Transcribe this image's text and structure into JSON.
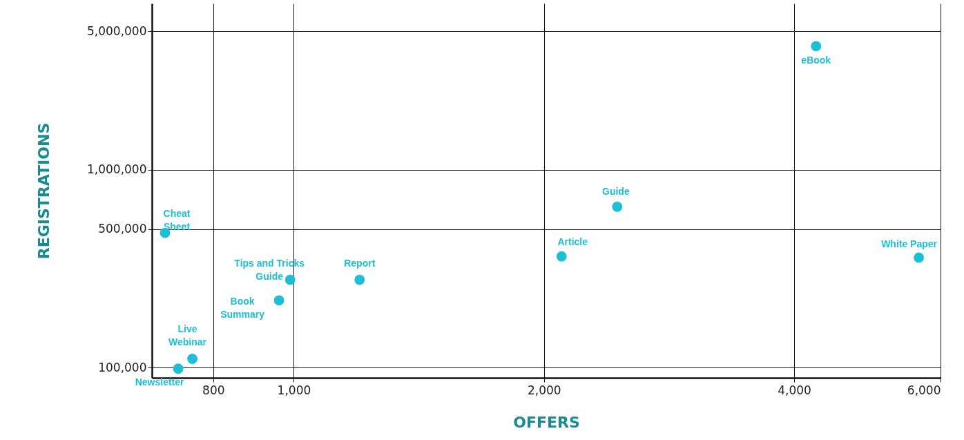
{
  "chart_data": {
    "type": "scatter",
    "xlabel": "OFFERS",
    "ylabel": "REGISTRATIONS",
    "x": [
      4250,
      2450,
      2100,
      5650,
      700,
      990,
      1200,
      960,
      755,
      726
    ],
    "values": [
      4200000,
      650000,
      365000,
      360000,
      480000,
      278000,
      278000,
      219000,
      111000,
      99000
    ],
    "color": "#1cbfd3",
    "log": "xy",
    "xlim": [
      675,
      6000
    ],
    "ylim": [
      89000,
      6900000
    ],
    "xticks": [
      800,
      {
        "value": 1000,
        "label": "1,000"
      },
      {
        "value": 2000,
        "label": "2,000"
      },
      {
        "value": 4000,
        "label": "4,000"
      },
      {
        "value": 6000,
        "label": "6,000"
      }
    ],
    "yticks": [
      {
        "value": 100000,
        "label": "100,000"
      },
      {
        "value": 500000,
        "label": "500,000"
      },
      {
        "value": 1000000,
        "label": "1,000,000"
      },
      {
        "value": 5000000,
        "label": "5,000,000"
      }
    ],
    "grid": true,
    "marker": "circle",
    "annotations": [
      {
        "text": "eBook",
        "x": 4250,
        "y": 4200000
      },
      {
        "text": "Guide",
        "x": 2450,
        "y": 650000
      },
      {
        "text": "Article",
        "x": 2100,
        "y": 365000
      },
      {
        "text": "White Paper",
        "x": 5650,
        "y": 360000
      },
      {
        "text": "Cheat Sheet",
        "x": 700,
        "y": 480000
      },
      {
        "text": "Tips and Tricks Guide",
        "x": 990,
        "y": 278000
      },
      {
        "text": "Report",
        "x": 1200,
        "y": 278000
      },
      {
        "text": "Book Summary",
        "x": 960,
        "y": 219000
      },
      {
        "text": "Live Webinar",
        "x": 755,
        "y": 111000
      },
      {
        "text": "Newsletter",
        "x": 726,
        "y": 99000
      }
    ]
  }
}
